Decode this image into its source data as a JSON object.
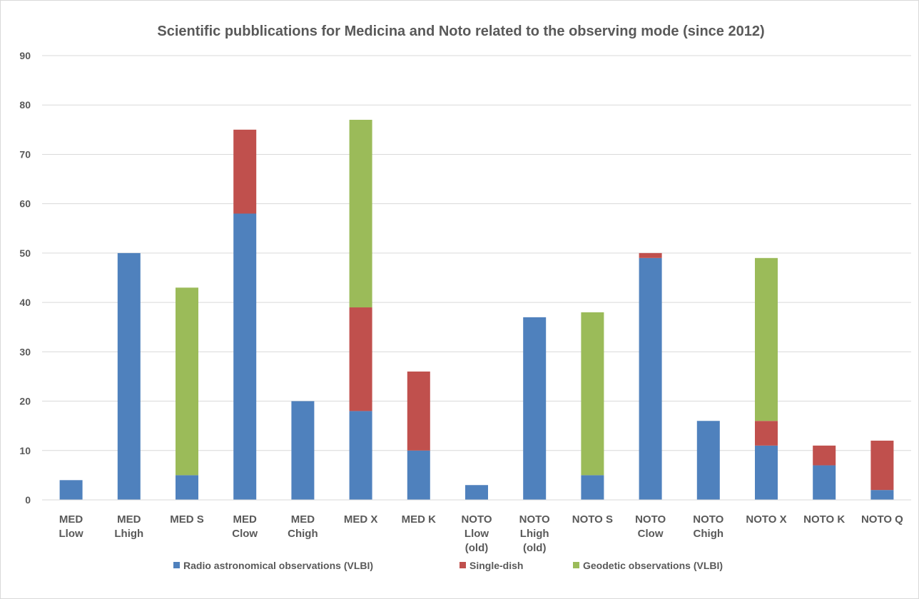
{
  "chart_data": {
    "type": "bar",
    "stacked": true,
    "title": "Scientific pubblications for Medicina and Noto related to the observing mode (since 2012)",
    "xlabel": "",
    "ylabel": "",
    "ylim": [
      0,
      90
    ],
    "yticks": [
      0,
      10,
      20,
      30,
      40,
      50,
      60,
      70,
      80,
      90
    ],
    "grid": true,
    "legend_position": "bottom",
    "categories": [
      [
        "MED",
        "Llow"
      ],
      [
        "MED",
        "Lhigh"
      ],
      [
        "MED S"
      ],
      [
        "MED",
        "Clow"
      ],
      [
        "MED",
        "Chigh"
      ],
      [
        "MED X"
      ],
      [
        "MED K"
      ],
      [
        "NOTO",
        "Llow",
        "(old)"
      ],
      [
        "NOTO",
        "Lhigh",
        "(old)"
      ],
      [
        "NOTO S"
      ],
      [
        "NOTO",
        "Clow"
      ],
      [
        "NOTO",
        "Chigh"
      ],
      [
        "NOTO X"
      ],
      [
        "NOTO K"
      ],
      [
        "NOTO Q"
      ]
    ],
    "series": [
      {
        "name": "Radio astronomical observations (VLBI)",
        "color": "#4f81bd",
        "values": [
          4,
          50,
          5,
          58,
          20,
          18,
          10,
          3,
          37,
          5,
          49,
          16,
          11,
          7,
          2
        ]
      },
      {
        "name": "Single-dish",
        "color": "#c0504d",
        "values": [
          0,
          0,
          0,
          17,
          0,
          21,
          16,
          0,
          0,
          0,
          1,
          0,
          5,
          4,
          10
        ]
      },
      {
        "name": "Geodetic observations (VLBI)",
        "color": "#9bbb59",
        "values": [
          0,
          0,
          38,
          0,
          0,
          38,
          0,
          0,
          0,
          33,
          0,
          0,
          33,
          0,
          0
        ]
      }
    ]
  }
}
